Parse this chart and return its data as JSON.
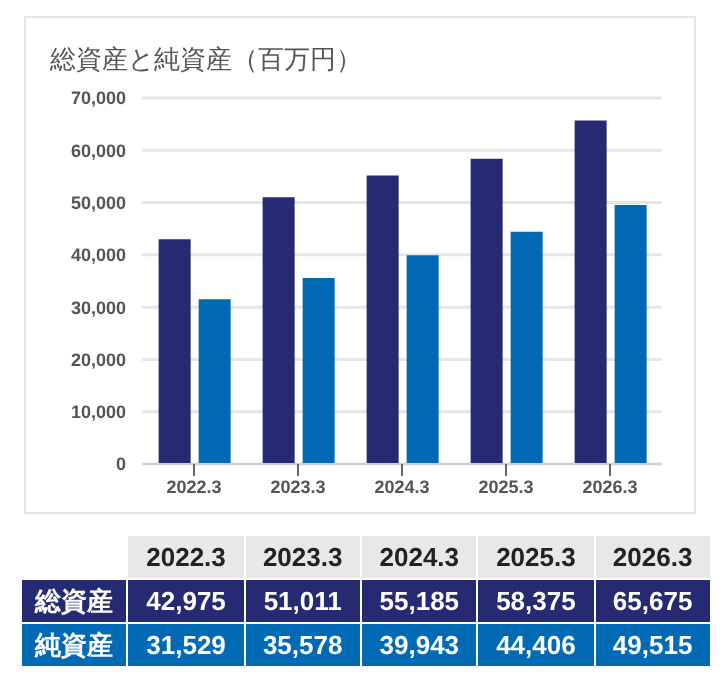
{
  "chart_data": {
    "type": "bar",
    "title": "総資産と純資産（百万円）",
    "categories": [
      "2022.3",
      "2023.3",
      "2024.3",
      "2025.3",
      "2026.3"
    ],
    "series": [
      {
        "name": "総資産",
        "color": "#252a72",
        "values": [
          42975,
          51011,
          55185,
          58375,
          65675
        ],
        "value_labels": [
          "42,975",
          "51,011",
          "55,185",
          "58,375",
          "65,675"
        ]
      },
      {
        "name": "純資産",
        "color": "#006ab4",
        "values": [
          31529,
          35578,
          39943,
          44406,
          49515
        ],
        "value_labels": [
          "31,529",
          "35,578",
          "39,943",
          "44,406",
          "49,515"
        ]
      }
    ],
    "ylim": [
      0,
      70000
    ],
    "yticks": [
      0,
      {
        "value": 10000,
        "label": "10,000"
      },
      {
        "value": 20000,
        "label": "20,000"
      },
      {
        "value": 30000,
        "label": "30,000"
      },
      {
        "value": 40000,
        "label": "40,000"
      },
      {
        "value": 50000,
        "label": "50,000"
      },
      {
        "value": 60000,
        "label": "60,000"
      },
      {
        "value": 70000,
        "label": "70,000"
      }
    ],
    "grid": "y",
    "legend": "bottom"
  }
}
